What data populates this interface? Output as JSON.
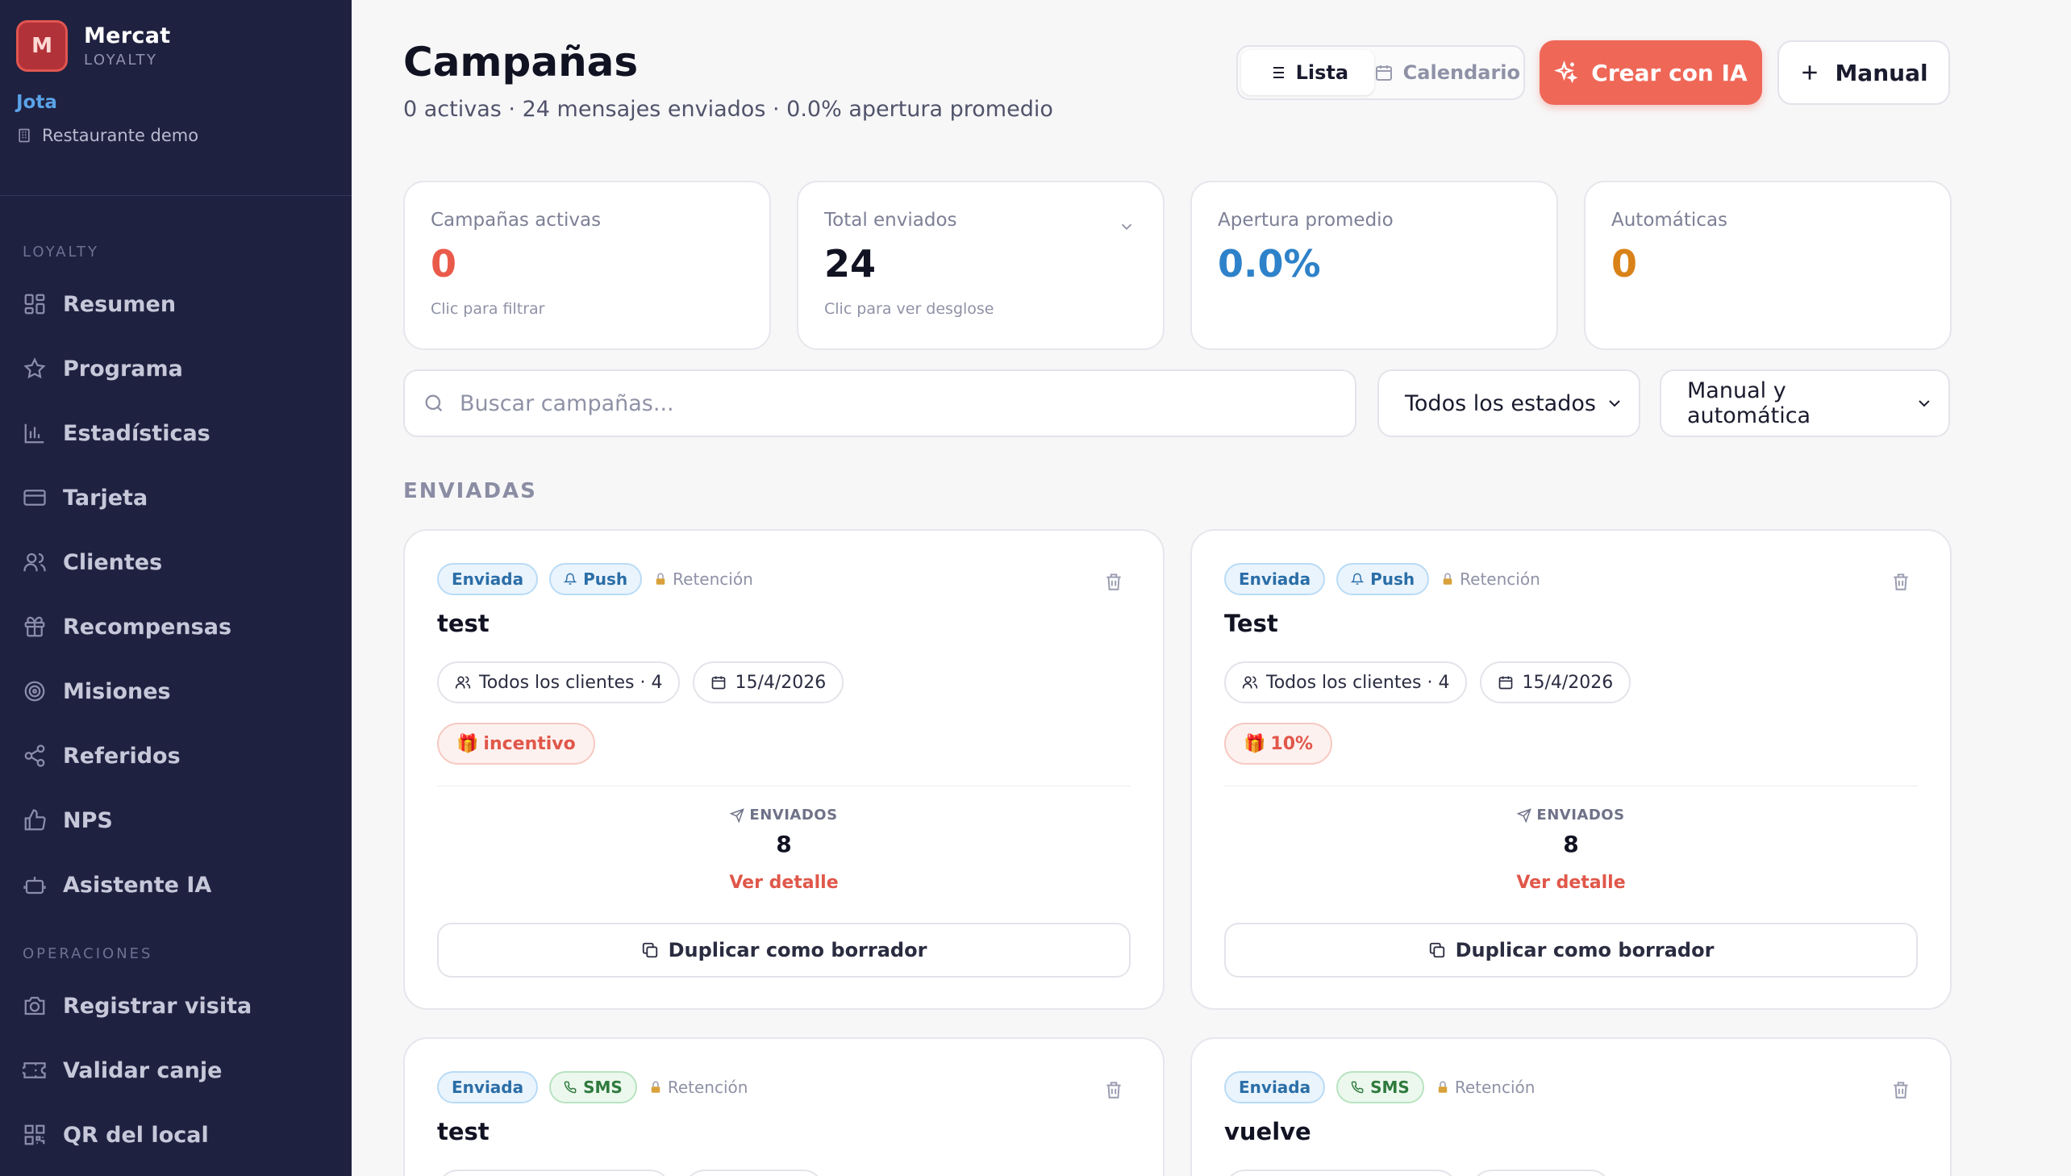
{
  "sidebar": {
    "brand_initial": "M",
    "brand_name": "Mercat",
    "brand_sub": "LOYALTY",
    "user_name": "Jota",
    "venue": "Restaurante demo",
    "section_loyalty": "LOYALTY",
    "section_ops": "OPERACIONES",
    "loyalty_items": [
      {
        "label": "Resumen",
        "icon": "grid-icon"
      },
      {
        "label": "Programa",
        "icon": "star-icon"
      },
      {
        "label": "Estadísticas",
        "icon": "bar-chart-icon"
      },
      {
        "label": "Tarjeta",
        "icon": "card-icon"
      },
      {
        "label": "Clientes",
        "icon": "users-icon"
      },
      {
        "label": "Recompensas",
        "icon": "gift-icon"
      },
      {
        "label": "Misiones",
        "icon": "target-icon"
      },
      {
        "label": "Referidos",
        "icon": "share-icon"
      },
      {
        "label": "NPS",
        "icon": "thumbs-up-icon"
      },
      {
        "label": "Asistente IA",
        "icon": "bot-icon"
      }
    ],
    "ops_items": [
      {
        "label": "Registrar visita",
        "icon": "camera-icon"
      },
      {
        "label": "Validar canje",
        "icon": "ticket-icon"
      },
      {
        "label": "QR del local",
        "icon": "qr-icon"
      }
    ]
  },
  "header": {
    "title": "Campañas",
    "subtitle": "0 activas · 24 mensajes enviados · 0.0% apertura promedio",
    "view_list": "Lista",
    "view_calendar": "Calendario",
    "create_ai": "Crear con IA",
    "create_manual": "Manual"
  },
  "stats": [
    {
      "label": "Campañas activas",
      "value": "0",
      "hint": "Clic para filtrar",
      "color": "#ea5a4b"
    },
    {
      "label": "Total enviados",
      "value": "24",
      "hint": "Clic para ver desglose",
      "color": "#111222"
    },
    {
      "label": "Apertura promedio",
      "value": "0.0%",
      "hint": "",
      "color": "#2e82c9"
    },
    {
      "label": "Automáticas",
      "value": "0",
      "hint": "",
      "color": "#d98218"
    }
  ],
  "filters": {
    "search_placeholder": "Buscar campañas...",
    "status_select": "Todos los estados",
    "type_select": "Manual y automática"
  },
  "section_title": "ENVIADAS",
  "campaigns": [
    {
      "status": "Enviada",
      "channel": "Push",
      "category": "Retención",
      "title": "test",
      "audience": "Todos los clientes · 4",
      "date": "15/4/2026",
      "incentive": "incentivo",
      "sent_label": "ENVIADOS",
      "sent": "8",
      "detail": "Ver detalle",
      "duplicate": "Duplicar como borrador"
    },
    {
      "status": "Enviada",
      "channel": "Push",
      "category": "Retención",
      "title": "Test",
      "audience": "Todos los clientes · 4",
      "date": "15/4/2026",
      "incentive": "10%",
      "sent_label": "ENVIADOS",
      "sent": "8",
      "detail": "Ver detalle",
      "duplicate": "Duplicar como borrador"
    },
    {
      "status": "Enviada",
      "channel": "SMS",
      "category": "Retención",
      "title": "test"
    },
    {
      "status": "Enviada",
      "channel": "SMS",
      "category": "Retención",
      "title": "vuelve"
    }
  ]
}
